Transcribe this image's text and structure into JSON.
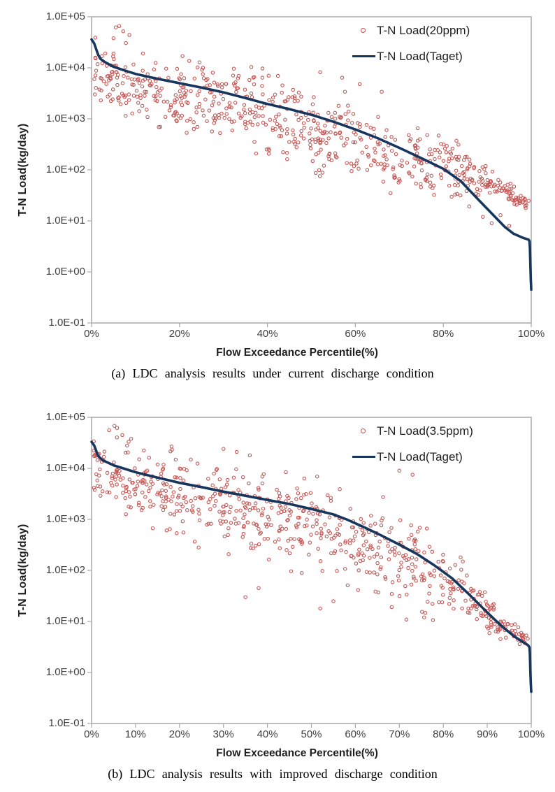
{
  "page": {
    "background": "#ffffff"
  },
  "chart_data": [
    {
      "type": "scatter",
      "caption": "(a) LDC analysis results under current discharge condition",
      "xlabel": "Flow Exceedance Percentile(%)",
      "ylabel": "T-N Load(kg/day)",
      "x_ticks": [
        "0%",
        "20%",
        "40%",
        "60%",
        "80%",
        "100%"
      ],
      "y_ticks": [
        "1.0E+05",
        "1.0E+04",
        "1.0E+03",
        "1.0E+02",
        "1.0E+01",
        "1.0E+00",
        "1.0E-01"
      ],
      "xlim": [
        0,
        100
      ],
      "ylim": [
        0.1,
        100000
      ],
      "y_scale": "log",
      "grid": false,
      "legend_position": "top-right-inside",
      "colors": {
        "plot_border": "#A8A8A8",
        "tick_text": "#404040",
        "title_text": "#1F1F1F"
      },
      "series": [
        {
          "name": "T-N Load(20ppm)",
          "kind": "scatter",
          "marker": "open-circle",
          "color": "#C0504D",
          "generated": {
            "note": "dense daily scatter approximated from plot: values spread in decades around center curve",
            "count": 680,
            "seed": 20,
            "x_range": [
              0.4,
              99.7
            ],
            "center_anchors": [
              [
                0,
                13000
              ],
              [
                2,
                9000
              ],
              [
                5,
                7000
              ],
              [
                10,
                5000
              ],
              [
                20,
                3200
              ],
              [
                30,
                2000
              ],
              [
                40,
                1250
              ],
              [
                50,
                750
              ],
              [
                60,
                380
              ],
              [
                70,
                190
              ],
              [
                78,
                115
              ],
              [
                85,
                85
              ],
              [
                90,
                55
              ],
              [
                95,
                32
              ],
              [
                100,
                20
              ]
            ],
            "sd_decades_anchors": [
              [
                0,
                0.28
              ],
              [
                10,
                0.33
              ],
              [
                30,
                0.36
              ],
              [
                50,
                0.38
              ],
              [
                70,
                0.36
              ],
              [
                82,
                0.28
              ],
              [
                88,
                0.2
              ],
              [
                93,
                0.13
              ],
              [
                97,
                0.08
              ],
              [
                100,
                0.04
              ]
            ]
          },
          "outlier_points": [
            [
              5.5,
              62000
            ],
            [
              6.3,
              66000
            ],
            [
              7.2,
              52000
            ],
            [
              8.6,
              44000
            ],
            [
              5.0,
              38000
            ],
            [
              52,
              8200
            ],
            [
              57,
              6400
            ],
            [
              61,
              4800
            ],
            [
              66,
              3400
            ],
            [
              89,
              12
            ],
            [
              91,
              9
            ],
            [
              93,
              13
            ],
            [
              95,
              8
            ]
          ]
        },
        {
          "name": "T-N Load(Taget)",
          "kind": "line",
          "color": "#17365D",
          "width": 3.6,
          "points": [
            [
              0,
              36000
            ],
            [
              0.6,
              30000
            ],
            [
              1.5,
              18000
            ],
            [
              2,
              15000
            ],
            [
              3,
              13000
            ],
            [
              5,
              10500
            ],
            [
              8,
              8600
            ],
            [
              10,
              7600
            ],
            [
              15,
              6100
            ],
            [
              20,
              5000
            ],
            [
              25,
              4100
            ],
            [
              30,
              3300
            ],
            [
              35,
              2550
            ],
            [
              40,
              1950
            ],
            [
              45,
              1550
            ],
            [
              50,
              1200
            ],
            [
              55,
              880
            ],
            [
              60,
              620
            ],
            [
              65,
              420
            ],
            [
              70,
              270
            ],
            [
              75,
              170
            ],
            [
              80,
              105
            ],
            [
              84,
              60
            ],
            [
              88,
              26
            ],
            [
              91,
              14
            ],
            [
              94,
              7.6
            ],
            [
              96,
              5.6
            ],
            [
              98,
              4.7
            ],
            [
              99.4,
              4.3
            ],
            [
              99.6,
              4.0
            ],
            [
              99.7,
              3.0
            ],
            [
              99.8,
              1.5
            ],
            [
              99.9,
              0.7
            ],
            [
              100,
              0.45
            ]
          ]
        }
      ]
    },
    {
      "type": "scatter",
      "caption": "(b) LDC analysis results with improved discharge condition",
      "xlabel": "Flow Exceedance Percentile(%)",
      "ylabel": "T-N Load(kg/day)",
      "x_ticks": [
        "0%",
        "10%",
        "20%",
        "30%",
        "40%",
        "50%",
        "60%",
        "70%",
        "80%",
        "90%",
        "100%"
      ],
      "y_ticks": [
        "1.0E+05",
        "1.0E+04",
        "1.0E+03",
        "1.0E+02",
        "1.0E+01",
        "1.0E+00",
        "1.0E-01"
      ],
      "xlim": [
        0,
        100
      ],
      "ylim": [
        0.1,
        100000
      ],
      "y_scale": "log",
      "grid": false,
      "legend_position": "top-right-inside",
      "colors": {
        "plot_border": "#A8A8A8",
        "tick_text": "#404040",
        "title_text": "#1F1F1F"
      },
      "series": [
        {
          "name": "T-N Load(3.5ppm)",
          "kind": "scatter",
          "marker": "open-circle",
          "color": "#C0504D",
          "generated": {
            "note": "dense daily scatter approximated from plot: values spread in decades around center curve",
            "count": 680,
            "seed": 77,
            "x_range": [
              0.4,
              99.7
            ],
            "center_anchors": [
              [
                0,
                12000
              ],
              [
                2,
                8500
              ],
              [
                5,
                6500
              ],
              [
                10,
                4800
              ],
              [
                20,
                3000
              ],
              [
                30,
                1900
              ],
              [
                40,
                1200
              ],
              [
                50,
                700
              ],
              [
                60,
                330
              ],
              [
                70,
                150
              ],
              [
                78,
                75
              ],
              [
                85,
                33
              ],
              [
                90,
                15
              ],
              [
                95,
                7
              ],
              [
                100,
                3.6
              ]
            ],
            "sd_decades_anchors": [
              [
                0,
                0.3
              ],
              [
                10,
                0.35
              ],
              [
                30,
                0.42
              ],
              [
                50,
                0.46
              ],
              [
                65,
                0.46
              ],
              [
                75,
                0.42
              ],
              [
                85,
                0.3
              ],
              [
                92,
                0.18
              ],
              [
                97,
                0.09
              ],
              [
                100,
                0.04
              ]
            ]
          },
          "outlier_points": [
            [
              4,
              56000
            ],
            [
              5.2,
              68000
            ],
            [
              5.8,
              62000
            ],
            [
              7,
              45000
            ],
            [
              9,
              38000
            ],
            [
              30,
              24000
            ],
            [
              33,
              21000
            ],
            [
              36,
              18000
            ],
            [
              70,
              9000
            ],
            [
              73,
              7500
            ],
            [
              35,
              30
            ],
            [
              38,
              45
            ],
            [
              52,
              18
            ],
            [
              55,
              25
            ]
          ]
        },
        {
          "name": "T-N Load(Taget)",
          "kind": "line",
          "color": "#17365D",
          "width": 3.6,
          "points": [
            [
              0,
              33000
            ],
            [
              0.6,
              28000
            ],
            [
              1.5,
              17500
            ],
            [
              2.5,
              14500
            ],
            [
              5,
              11500
            ],
            [
              10,
              8400
            ],
            [
              15,
              6600
            ],
            [
              20,
              5200
            ],
            [
              25,
              4300
            ],
            [
              30,
              3500
            ],
            [
              35,
              2900
            ],
            [
              40,
              2400
            ],
            [
              45,
              2000
            ],
            [
              50,
              1600
            ],
            [
              55,
              1250
            ],
            [
              58,
              1000
            ],
            [
              62,
              700
            ],
            [
              66,
              480
            ],
            [
              70,
              320
            ],
            [
              74,
              210
            ],
            [
              78,
              125
            ],
            [
              82,
              70
            ],
            [
              86,
              33
            ],
            [
              90,
              15
            ],
            [
              93,
              8.5
            ],
            [
              96,
              5.2
            ],
            [
              98,
              4.0
            ],
            [
              99.3,
              3.4
            ],
            [
              99.6,
              3.1
            ],
            [
              99.7,
              2.3
            ],
            [
              99.8,
              1.1
            ],
            [
              99.9,
              0.6
            ],
            [
              100,
              0.42
            ]
          ]
        }
      ]
    }
  ]
}
